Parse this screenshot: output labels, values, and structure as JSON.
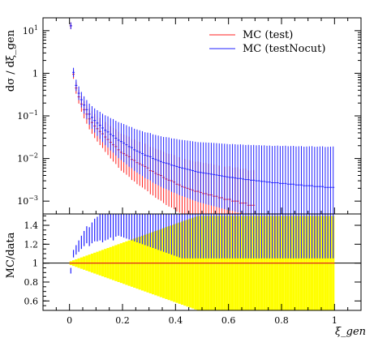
{
  "chart_data": [
    {
      "type": "line",
      "panel": "main",
      "ylabel": "dσ / dξ_gen",
      "yscale": "log",
      "ylim": [
        0.0005,
        20
      ],
      "xlim": [
        -0.1,
        1.1
      ],
      "y_ticks": [
        {
          "value": 10,
          "base": "10",
          "exp": "1"
        },
        {
          "value": 1,
          "base": "1",
          "exp": ""
        },
        {
          "value": 0.1,
          "base": "10",
          "exp": "−1"
        },
        {
          "value": 0.01,
          "base": "10",
          "exp": "−2"
        },
        {
          "value": 0.001,
          "base": "10",
          "exp": "−3"
        }
      ],
      "legend_position": "top-right",
      "series": [
        {
          "name": "MC (test)",
          "color": "#ff2020",
          "x": [
            0.005,
            0.015,
            0.025,
            0.035,
            0.045,
            0.055,
            0.065,
            0.075,
            0.085,
            0.095,
            0.105,
            0.115,
            0.125,
            0.135,
            0.145,
            0.155,
            0.165,
            0.175,
            0.185,
            0.195,
            0.205,
            0.215,
            0.225,
            0.235,
            0.245,
            0.255,
            0.265,
            0.275,
            0.285,
            0.295,
            0.305,
            0.315,
            0.325,
            0.335,
            0.345,
            0.355,
            0.365,
            0.375,
            0.385,
            0.395,
            0.405,
            0.415,
            0.425,
            0.435,
            0.445,
            0.455,
            0.465,
            0.475,
            0.485,
            0.495,
            0.505,
            0.515,
            0.525,
            0.535,
            0.545,
            0.555,
            0.565,
            0.575,
            0.585,
            0.595,
            0.605,
            0.615,
            0.625,
            0.635,
            0.645,
            0.655,
            0.665,
            0.675,
            0.685,
            0.695
          ],
          "values": [
            13,
            0.95,
            0.45,
            0.28,
            0.19,
            0.14,
            0.11,
            0.085,
            0.07,
            0.058,
            0.05,
            0.043,
            0.038,
            0.032,
            0.028,
            0.024,
            0.021,
            0.019,
            0.016,
            0.014,
            0.013,
            0.012,
            0.011,
            0.0095,
            0.009,
            0.008,
            0.0075,
            0.007,
            0.0065,
            0.006,
            0.0052,
            0.005,
            0.0045,
            0.0042,
            0.004,
            0.0036,
            0.0033,
            0.0031,
            0.003,
            0.0028,
            0.0025,
            0.0024,
            0.0022,
            0.0021,
            0.002,
            0.0019,
            0.0018,
            0.0017,
            0.0017,
            0.0016,
            0.0015,
            0.0015,
            0.0014,
            0.0014,
            0.0013,
            0.0013,
            0.0012,
            0.0012,
            0.0011,
            0.0011,
            0.0011,
            0.001,
            0.001,
            0.001,
            0.0009,
            0.0009,
            0.0009,
            0.0008,
            0.0008,
            0.0008
          ]
        },
        {
          "name": "MC (testNocut)",
          "color": "#2020ff",
          "x": [
            0.005,
            0.015,
            0.025,
            0.035,
            0.045,
            0.055,
            0.065,
            0.075,
            0.085,
            0.095,
            0.105,
            0.115,
            0.125,
            0.135,
            0.145,
            0.155,
            0.165,
            0.175,
            0.185,
            0.195,
            0.205,
            0.215,
            0.225,
            0.235,
            0.245,
            0.255,
            0.265,
            0.275,
            0.285,
            0.295,
            0.305,
            0.315,
            0.325,
            0.335,
            0.345,
            0.355,
            0.365,
            0.375,
            0.385,
            0.395,
            0.405,
            0.415,
            0.425,
            0.435,
            0.445,
            0.455,
            0.465,
            0.475,
            0.485,
            0.495,
            0.505,
            0.515,
            0.525,
            0.535,
            0.545,
            0.555,
            0.565,
            0.575,
            0.585,
            0.595,
            0.605,
            0.615,
            0.625,
            0.635,
            0.645,
            0.655,
            0.665,
            0.675,
            0.685,
            0.695,
            0.705,
            0.715,
            0.725,
            0.735,
            0.745,
            0.755,
            0.765,
            0.775,
            0.785,
            0.795,
            0.805,
            0.815,
            0.825,
            0.835,
            0.845,
            0.855,
            0.865,
            0.875,
            0.885,
            0.895,
            0.905,
            0.915,
            0.925,
            0.935,
            0.945,
            0.955,
            0.965,
            0.975,
            0.985,
            0.995
          ],
          "values": [
            13,
            1.05,
            0.52,
            0.34,
            0.24,
            0.18,
            0.14,
            0.11,
            0.092,
            0.078,
            0.068,
            0.06,
            0.052,
            0.046,
            0.042,
            0.037,
            0.034,
            0.03,
            0.027,
            0.025,
            0.023,
            0.021,
            0.019,
            0.018,
            0.016,
            0.015,
            0.014,
            0.013,
            0.012,
            0.0115,
            0.011,
            0.01,
            0.0095,
            0.009,
            0.0085,
            0.008,
            0.0078,
            0.0075,
            0.007,
            0.0068,
            0.0065,
            0.0062,
            0.006,
            0.0058,
            0.0056,
            0.0054,
            0.0052,
            0.005,
            0.0048,
            0.0047,
            0.0046,
            0.0045,
            0.0044,
            0.0043,
            0.0042,
            0.0041,
            0.004,
            0.0039,
            0.0038,
            0.0037,
            0.0036,
            0.0036,
            0.0035,
            0.0034,
            0.0034,
            0.0033,
            0.0032,
            0.0032,
            0.0031,
            0.0031,
            0.003,
            0.003,
            0.0029,
            0.0029,
            0.0028,
            0.0028,
            0.0027,
            0.0027,
            0.0027,
            0.0026,
            0.0026,
            0.0026,
            0.0025,
            0.0025,
            0.0025,
            0.0024,
            0.0024,
            0.0024,
            0.0023,
            0.0023,
            0.0023,
            0.0023,
            0.0022,
            0.0022,
            0.0022,
            0.0022,
            0.0021,
            0.0021,
            0.0021,
            0.0021
          ]
        }
      ]
    },
    {
      "type": "line",
      "panel": "ratio",
      "ylabel": "MC/data",
      "xlabel": "ξ_gen",
      "ylim": [
        0.5,
        1.52
      ],
      "xlim": [
        -0.1,
        1.1
      ],
      "x_ticks": [
        "0",
        "0.2",
        "0.4",
        "0.6",
        "0.8",
        "1"
      ],
      "y_ticks": [
        "0.6",
        "0.8",
        "1",
        "1.2",
        "1.4"
      ],
      "reference_value": 1,
      "band_color": "#ffff00",
      "series": [
        {
          "name": "MC (test)",
          "color": "#ff2020",
          "x": [
            0.005,
            0.015,
            0.025,
            0.035,
            0.045,
            0.055,
            0.065,
            0.075,
            0.085,
            0.095,
            0.105,
            0.115,
            0.125,
            0.135,
            0.145,
            0.155,
            0.165,
            0.175,
            0.185,
            0.195,
            0.205,
            0.215,
            0.225,
            0.235,
            0.245,
            0.255,
            0.265,
            0.275,
            0.285,
            0.295,
            0.305,
            0.315,
            0.325,
            0.335,
            0.345,
            0.355,
            0.365,
            0.375,
            0.385,
            0.395,
            0.405,
            0.415,
            0.425,
            0.435,
            0.445,
            0.455,
            0.465,
            0.475,
            0.485,
            0.495,
            0.505,
            0.515,
            0.525,
            0.535,
            0.545,
            0.555,
            0.565,
            0.575,
            0.585,
            0.595,
            0.605,
            0.615,
            0.625,
            0.635,
            0.645,
            0.655,
            0.665,
            0.675,
            0.685,
            0.695,
            0.705,
            0.715,
            0.725,
            0.735,
            0.745,
            0.755,
            0.765,
            0.775,
            0.785,
            0.795,
            0.805,
            0.815,
            0.825,
            0.835,
            0.845,
            0.855,
            0.865,
            0.875,
            0.885,
            0.895,
            0.905,
            0.915,
            0.925,
            0.935,
            0.945,
            0.955,
            0.965,
            0.975,
            0.985,
            0.995
          ],
          "values": [
            1,
            1,
            1,
            1,
            1,
            1,
            1,
            1,
            1,
            1,
            1,
            1,
            1,
            1,
            1,
            1,
            1,
            1,
            1,
            1,
            1,
            1,
            1,
            1,
            1,
            1,
            1,
            1,
            1,
            1,
            1,
            1,
            1,
            1,
            1,
            1,
            1,
            1,
            1,
            1,
            1,
            1,
            1,
            1,
            1,
            1,
            1,
            1,
            1,
            1,
            1,
            1,
            1,
            1,
            1,
            1,
            1,
            1,
            1,
            1,
            1,
            1,
            1,
            1,
            1,
            1,
            1,
            1,
            1,
            1,
            1,
            1,
            1,
            1,
            1,
            1,
            1,
            1,
            1,
            1,
            1,
            1,
            1,
            1,
            1,
            1,
            1,
            1,
            1,
            1,
            1,
            1,
            1,
            1,
            1,
            1,
            1,
            1,
            1,
            1
          ],
          "band_halfwidth": [
            0.02,
            0.03,
            0.04,
            0.05,
            0.06,
            0.07,
            0.08,
            0.09,
            0.1,
            0.11,
            0.12,
            0.13,
            0.14,
            0.15,
            0.16,
            0.17,
            0.18,
            0.19,
            0.2,
            0.21,
            0.22,
            0.23,
            0.24,
            0.25,
            0.26,
            0.27,
            0.28,
            0.29,
            0.3,
            0.31,
            0.32,
            0.33,
            0.34,
            0.35,
            0.36,
            0.37,
            0.38,
            0.39,
            0.4,
            0.41,
            0.42,
            0.43,
            0.44,
            0.45,
            0.46,
            0.47,
            0.48,
            0.49,
            0.5,
            0.5,
            0.5,
            0.5,
            0.5,
            0.5,
            0.5,
            0.5,
            0.5,
            0.5,
            0.5,
            0.5,
            0.5,
            0.5,
            0.5,
            0.5,
            0.5,
            0.5,
            0.5,
            0.5,
            0.5,
            0.5,
            0.5,
            0.5,
            0.5,
            0.5,
            0.5,
            0.5,
            0.5,
            0.5,
            0.5,
            0.5,
            0.5,
            0.5,
            0.5,
            0.5,
            0.5,
            0.5,
            0.5,
            0.5,
            0.5,
            0.5,
            0.5,
            0.5,
            0.5,
            0.5,
            0.5,
            0.5,
            0.5,
            0.5,
            0.5,
            0.5
          ]
        },
        {
          "name": "MC (testNocut)",
          "color": "#2020ff",
          "x": [
            0.005,
            0.015,
            0.025,
            0.035,
            0.045,
            0.055,
            0.065,
            0.075,
            0.085,
            0.095,
            0.105,
            0.115,
            0.125,
            0.135,
            0.145,
            0.155,
            0.165,
            0.175,
            0.185,
            0.195,
            0.205,
            0.215,
            0.225,
            0.235,
            0.245,
            0.255,
            0.265,
            0.275,
            0.285,
            0.295,
            0.305,
            0.315,
            0.325,
            0.335,
            0.345,
            0.355,
            0.365,
            0.375,
            0.385,
            0.395,
            0.405,
            0.415,
            0.425,
            0.435,
            0.445,
            0.455,
            0.465,
            0.475,
            0.485,
            0.495,
            0.505,
            0.515,
            0.525,
            0.535,
            0.545,
            0.555,
            0.565,
            0.575,
            0.585,
            0.595,
            0.605,
            0.615,
            0.625,
            0.635,
            0.645,
            0.655,
            0.665,
            0.675,
            0.685,
            0.695,
            0.705,
            0.715,
            0.725,
            0.735,
            0.745,
            0.755,
            0.765,
            0.775,
            0.785,
            0.795,
            0.805,
            0.815,
            0.825,
            0.835,
            0.845,
            0.855,
            0.865,
            0.875,
            0.885,
            0.895,
            0.905,
            0.915,
            0.925,
            0.935,
            0.945,
            0.955,
            0.965,
            0.975,
            0.985,
            0.995
          ],
          "values": [
            0.92,
            1.1,
            1.14,
            1.18,
            1.22,
            1.26,
            1.3,
            1.28,
            1.32,
            1.35,
            1.36,
            1.38,
            1.37,
            1.4,
            1.42,
            1.45,
            1.43,
            1.48,
            1.5,
            1.5,
            1.5,
            1.5,
            1.5,
            1.5,
            1.5,
            1.5,
            1.5,
            1.5,
            1.5,
            1.5,
            1.5,
            1.5,
            1.5,
            1.5,
            1.5,
            1.5,
            1.5,
            1.5,
            1.5,
            1.5,
            1.5,
            1.5,
            1.5,
            1.5,
            1.5,
            1.5,
            1.5,
            1.5,
            1.5,
            1.5,
            1.5,
            1.5,
            1.5,
            1.5,
            1.5,
            1.5,
            1.5,
            1.5,
            1.5,
            1.5,
            1.5,
            1.5,
            1.5,
            1.5,
            1.5,
            1.5,
            1.5,
            1.5,
            1.5,
            1.5,
            1.5,
            1.5,
            1.5,
            1.5,
            1.5,
            1.5,
            1.5,
            1.5,
            1.5,
            1.5,
            1.5,
            1.5,
            1.5,
            1.5,
            1.5,
            1.5,
            1.5,
            1.5,
            1.5,
            1.5,
            1.5,
            1.5,
            1.5,
            1.5,
            1.5,
            1.5,
            1.5,
            1.5,
            1.5,
            1.5
          ]
        }
      ]
    }
  ]
}
